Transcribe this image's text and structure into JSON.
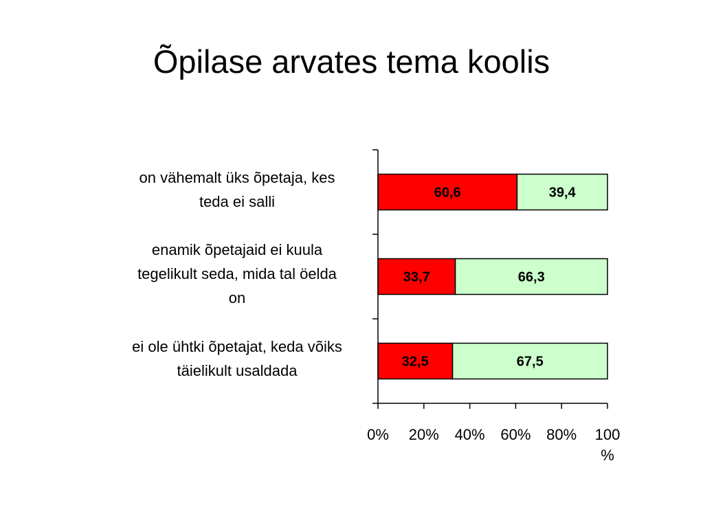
{
  "title": "Õpilase arvates tema koolis",
  "chart_data": {
    "type": "bar",
    "orientation": "horizontal",
    "stacked": "percent",
    "categories": [
      "on vähemalt  üks õpetaja, kes teda ei salli",
      "enamik õpetajaid ei kuula tegelikult seda, mida  tal öelda on",
      "ei ole ühtki õpetajat, keda võiks täielikult usaldada"
    ],
    "category_lines": [
      [
        "on vähemalt  üks õpetaja, kes",
        "teda ei salli"
      ],
      [
        "enamik õpetajaid ei kuula",
        "tegelikult seda, mida  tal öelda",
        "on"
      ],
      [
        "ei ole ühtki õpetajat, keda võiks",
        "täielikult usaldada"
      ]
    ],
    "series": [
      {
        "values": [
          60.6,
          33.7,
          32.5
        ],
        "labels": [
          "60,6",
          "33,7",
          "32,5"
        ],
        "color": "#ff0000"
      },
      {
        "values": [
          39.4,
          66.3,
          67.5
        ],
        "labels": [
          "39,4",
          "66,3",
          "67,5"
        ],
        "color": "#ccffcc"
      }
    ],
    "xticks": [
      0,
      20,
      40,
      60,
      80,
      100
    ],
    "xtick_labels": [
      [
        "0%"
      ],
      [
        "20%"
      ],
      [
        "40%"
      ],
      [
        "60%"
      ],
      [
        "80%"
      ],
      [
        "100",
        "%"
      ]
    ],
    "xlim": [
      0,
      100
    ],
    "grid": false,
    "legend": "none"
  }
}
